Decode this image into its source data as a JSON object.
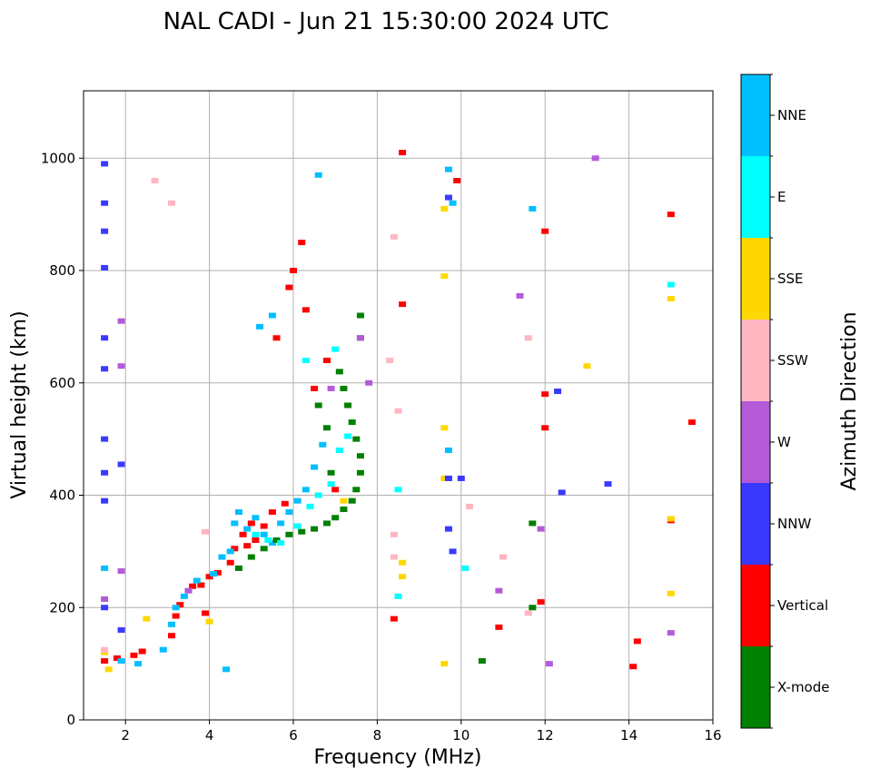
{
  "chart_data": {
    "type": "scatter",
    "title": "NAL CADI - Jun 21 15:30:00 2024 UTC",
    "xlabel": "Frequency (MHz)",
    "ylabel": "Virtual height (km)",
    "xlim": [
      1,
      16
    ],
    "ylim": [
      0,
      1120
    ],
    "xticks": [
      2,
      4,
      6,
      8,
      10,
      12,
      14,
      16
    ],
    "yticks": [
      0,
      200,
      400,
      600,
      800,
      1000
    ],
    "grid": true,
    "colorbar": {
      "label": "Azimuth Direction",
      "categories": [
        {
          "name": "X-mode",
          "color": "#008000"
        },
        {
          "name": "Vertical",
          "color": "#ff0000"
        },
        {
          "name": "NNW",
          "color": "#3a3aff"
        },
        {
          "name": "W",
          "color": "#b45ad8"
        },
        {
          "name": "SSW",
          "color": "#ffb6c1"
        },
        {
          "name": "SSE",
          "color": "#ffd700"
        },
        {
          "name": "E",
          "color": "#00ffff"
        },
        {
          "name": "NNE",
          "color": "#00bfff"
        }
      ]
    },
    "series": [
      {
        "name": "Vertical",
        "points": [
          [
            1.5,
            105
          ],
          [
            1.8,
            110
          ],
          [
            2.2,
            115
          ],
          [
            2.4,
            122
          ],
          [
            3.1,
            150
          ],
          [
            3.2,
            185
          ],
          [
            3.3,
            205
          ],
          [
            3.6,
            238
          ],
          [
            3.8,
            240
          ],
          [
            3.9,
            190
          ],
          [
            4.0,
            255
          ],
          [
            4.2,
            262
          ],
          [
            4.5,
            280
          ],
          [
            4.6,
            305
          ],
          [
            4.8,
            330
          ],
          [
            4.9,
            310
          ],
          [
            5.0,
            350
          ],
          [
            5.1,
            320
          ],
          [
            5.3,
            345
          ],
          [
            5.5,
            370
          ],
          [
            5.6,
            680
          ],
          [
            5.8,
            385
          ],
          [
            5.9,
            770
          ],
          [
            6.0,
            800
          ],
          [
            6.2,
            850
          ],
          [
            6.3,
            730
          ],
          [
            6.5,
            590
          ],
          [
            6.8,
            640
          ],
          [
            7.0,
            410
          ],
          [
            8.6,
            740
          ],
          [
            8.6,
            1010
          ],
          [
            9.9,
            960
          ],
          [
            12.0,
            870
          ],
          [
            12.0,
            580
          ],
          [
            12.0,
            520
          ],
          [
            15.0,
            900
          ],
          [
            15.5,
            530
          ],
          [
            15.0,
            355
          ],
          [
            14.1,
            95
          ],
          [
            14.2,
            140
          ],
          [
            10.9,
            165
          ],
          [
            8.4,
            180
          ],
          [
            11.9,
            210
          ]
        ]
      },
      {
        "name": "NNE",
        "points": [
          [
            1.9,
            105
          ],
          [
            2.3,
            100
          ],
          [
            2.9,
            125
          ],
          [
            3.1,
            170
          ],
          [
            3.2,
            200
          ],
          [
            3.4,
            220
          ],
          [
            3.7,
            248
          ],
          [
            4.1,
            260
          ],
          [
            4.3,
            290
          ],
          [
            4.5,
            300
          ],
          [
            4.6,
            350
          ],
          [
            4.7,
            370
          ],
          [
            4.9,
            340
          ],
          [
            5.1,
            360
          ],
          [
            5.3,
            330
          ],
          [
            5.5,
            315
          ],
          [
            5.7,
            350
          ],
          [
            5.9,
            370
          ],
          [
            6.1,
            390
          ],
          [
            6.3,
            410
          ],
          [
            6.5,
            450
          ],
          [
            6.7,
            490
          ],
          [
            5.2,
            700
          ],
          [
            5.5,
            720
          ],
          [
            6.6,
            970
          ],
          [
            9.7,
            980
          ],
          [
            9.8,
            920
          ],
          [
            9.7,
            480
          ],
          [
            11.7,
            910
          ],
          [
            4.4,
            90
          ],
          [
            1.5,
            270
          ]
        ]
      },
      {
        "name": "X-mode",
        "points": [
          [
            4.7,
            270
          ],
          [
            5.0,
            290
          ],
          [
            5.3,
            305
          ],
          [
            5.6,
            320
          ],
          [
            5.9,
            330
          ],
          [
            6.2,
            335
          ],
          [
            6.5,
            340
          ],
          [
            6.8,
            350
          ],
          [
            7.0,
            360
          ],
          [
            7.2,
            375
          ],
          [
            7.4,
            390
          ],
          [
            7.5,
            410
          ],
          [
            7.6,
            440
          ],
          [
            7.6,
            470
          ],
          [
            7.5,
            500
          ],
          [
            7.4,
            530
          ],
          [
            7.3,
            560
          ],
          [
            7.2,
            590
          ],
          [
            7.1,
            620
          ],
          [
            6.9,
            440
          ],
          [
            6.8,
            520
          ],
          [
            6.6,
            560
          ],
          [
            7.6,
            680
          ],
          [
            7.6,
            720
          ],
          [
            10.5,
            105
          ],
          [
            11.7,
            200
          ],
          [
            11.7,
            350
          ]
        ]
      },
      {
        "name": "E",
        "points": [
          [
            5.1,
            330
          ],
          [
            5.4,
            320
          ],
          [
            5.7,
            315
          ],
          [
            6.1,
            345
          ],
          [
            6.4,
            380
          ],
          [
            6.6,
            400
          ],
          [
            6.9,
            420
          ],
          [
            7.1,
            480
          ],
          [
            7.3,
            505
          ],
          [
            7.0,
            660
          ],
          [
            6.3,
            640
          ],
          [
            8.5,
            220
          ],
          [
            8.5,
            410
          ],
          [
            15.0,
            775
          ],
          [
            10.1,
            270
          ]
        ]
      },
      {
        "name": "SSE",
        "points": [
          [
            1.5,
            120
          ],
          [
            1.6,
            90
          ],
          [
            2.5,
            180
          ],
          [
            4.0,
            175
          ],
          [
            7.2,
            390
          ],
          [
            8.6,
            255
          ],
          [
            8.6,
            280
          ],
          [
            9.6,
            430
          ],
          [
            9.6,
            520
          ],
          [
            9.6,
            790
          ],
          [
            9.6,
            910
          ],
          [
            13.0,
            630
          ],
          [
            15.0,
            750
          ],
          [
            15.0,
            225
          ],
          [
            15.0,
            358
          ],
          [
            9.6,
            100
          ]
        ]
      },
      {
        "name": "SSW",
        "points": [
          [
            1.5,
            125
          ],
          [
            2.7,
            960
          ],
          [
            3.1,
            920
          ],
          [
            3.9,
            335
          ],
          [
            8.3,
            640
          ],
          [
            8.4,
            860
          ],
          [
            8.4,
            330
          ],
          [
            8.4,
            290
          ],
          [
            8.5,
            550
          ],
          [
            10.2,
            380
          ],
          [
            11.0,
            290
          ],
          [
            11.6,
            190
          ],
          [
            11.6,
            680
          ]
        ]
      },
      {
        "name": "W",
        "points": [
          [
            1.5,
            215
          ],
          [
            1.9,
            265
          ],
          [
            1.9,
            710
          ],
          [
            1.9,
            630
          ],
          [
            3.5,
            230
          ],
          [
            6.9,
            590
          ],
          [
            7.6,
            680
          ],
          [
            7.8,
            600
          ],
          [
            11.9,
            340
          ],
          [
            12.1,
            100
          ],
          [
            13.2,
            1000
          ],
          [
            15.0,
            155
          ],
          [
            10.9,
            230
          ],
          [
            11.4,
            755
          ]
        ]
      },
      {
        "name": "NNW",
        "points": [
          [
            1.5,
            990
          ],
          [
            1.5,
            920
          ],
          [
            1.5,
            870
          ],
          [
            1.5,
            805
          ],
          [
            1.5,
            680
          ],
          [
            1.5,
            625
          ],
          [
            1.5,
            500
          ],
          [
            1.5,
            440
          ],
          [
            1.5,
            390
          ],
          [
            1.5,
            200
          ],
          [
            1.9,
            160
          ],
          [
            1.9,
            455
          ],
          [
            9.7,
            930
          ],
          [
            9.7,
            430
          ],
          [
            9.7,
            340
          ],
          [
            9.8,
            300
          ],
          [
            10.0,
            430
          ],
          [
            12.3,
            585
          ],
          [
            12.4,
            405
          ],
          [
            13.5,
            420
          ]
        ]
      }
    ]
  }
}
